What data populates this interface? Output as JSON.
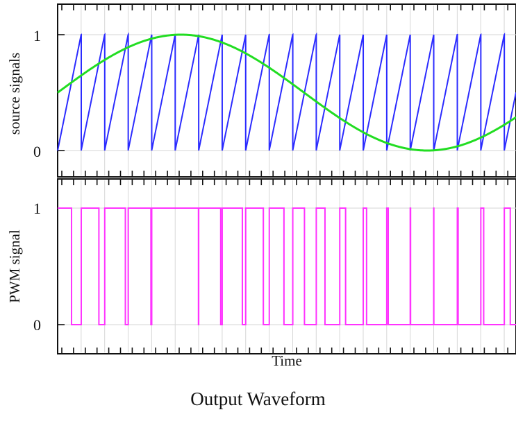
{
  "figure": {
    "caption": "Output Waveform",
    "xlabel": "Time"
  },
  "chart_data": [
    {
      "type": "line",
      "title": "",
      "xlabel": "Time",
      "ylabel": "source signals",
      "xlim": [
        0,
        1
      ],
      "ylim": [
        -0.2,
        1.25
      ],
      "yticks": [
        0,
        1
      ],
      "grid": true,
      "carrier_periods": 19.5,
      "series": [
        {
          "kind": "sawtooth",
          "color": "#2b2bff",
          "start": 0,
          "period": 0.05128,
          "min": 0,
          "max": 1
        },
        {
          "kind": "sine",
          "color": "#22dd22",
          "offset": 0.5,
          "amplitude": 0.5,
          "phase_start": 0,
          "cycles": 0.93
        }
      ]
    },
    {
      "type": "line",
      "title": "",
      "xlabel": "Time",
      "ylabel": "PWM signal",
      "xlim": [
        0,
        1
      ],
      "ylim": [
        -0.2,
        1.25
      ],
      "yticks": [
        0,
        1
      ],
      "grid": true,
      "series": [
        {
          "kind": "pwm",
          "color": "#ff33ff",
          "derived_from": "sine greater than sawtooth"
        }
      ]
    }
  ]
}
